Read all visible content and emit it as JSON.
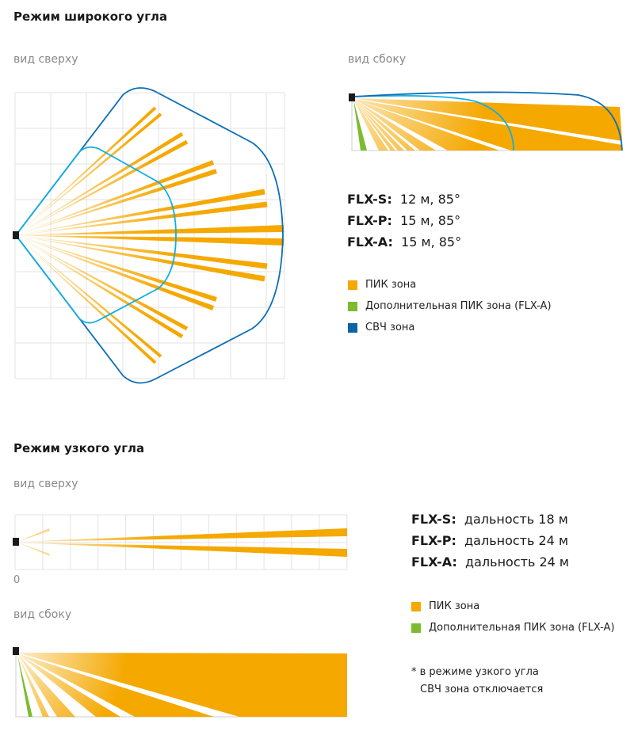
{
  "wide": {
    "title": "Режим широкого угла",
    "top_view_label": "вид сверху",
    "side_view_label": "вид сбоку",
    "specs": [
      {
        "model": "FLX-S:",
        "value": "12 м, 85°"
      },
      {
        "model": "FLX-P:",
        "value": "15 м, 85°"
      },
      {
        "model": "FLX-A:",
        "value": "15 м, 85°"
      }
    ],
    "legend": [
      {
        "label": "ПИК зона",
        "color": "#f5a800"
      },
      {
        "label": "Дополнительная ПИК зона (FLX-A)",
        "color": "#7dbb2f"
      },
      {
        "label": "СВЧ зона",
        "color": "#0a63a8"
      }
    ]
  },
  "narrow": {
    "title": "Режим узкого угла",
    "top_view_label": "вид сверху",
    "axis_zero": "0",
    "side_view_label": "вид сбоку",
    "specs": [
      {
        "model": "FLX-S:",
        "value": "дальность 18 м"
      },
      {
        "model": "FLX-P:",
        "value": "дальность 24 м"
      },
      {
        "model": "FLX-A:",
        "value": "дальность 24 м"
      }
    ],
    "legend": [
      {
        "label": "ПИК зона",
        "color": "#f5a800"
      },
      {
        "label": "Дополнительная ПИК зона (FLX-A)",
        "color": "#7dbb2f"
      }
    ],
    "note_line1": "* в режиме узкого угла",
    "note_line2": "СВЧ зона отключается"
  },
  "colors": {
    "pir": "#f5a800",
    "extra_pir": "#7dbb2f",
    "microwave_outer": "#0a6fb5",
    "microwave_inner": "#14aee0",
    "grid": "#e3e3e3",
    "sensor": "#1a1a1a"
  }
}
